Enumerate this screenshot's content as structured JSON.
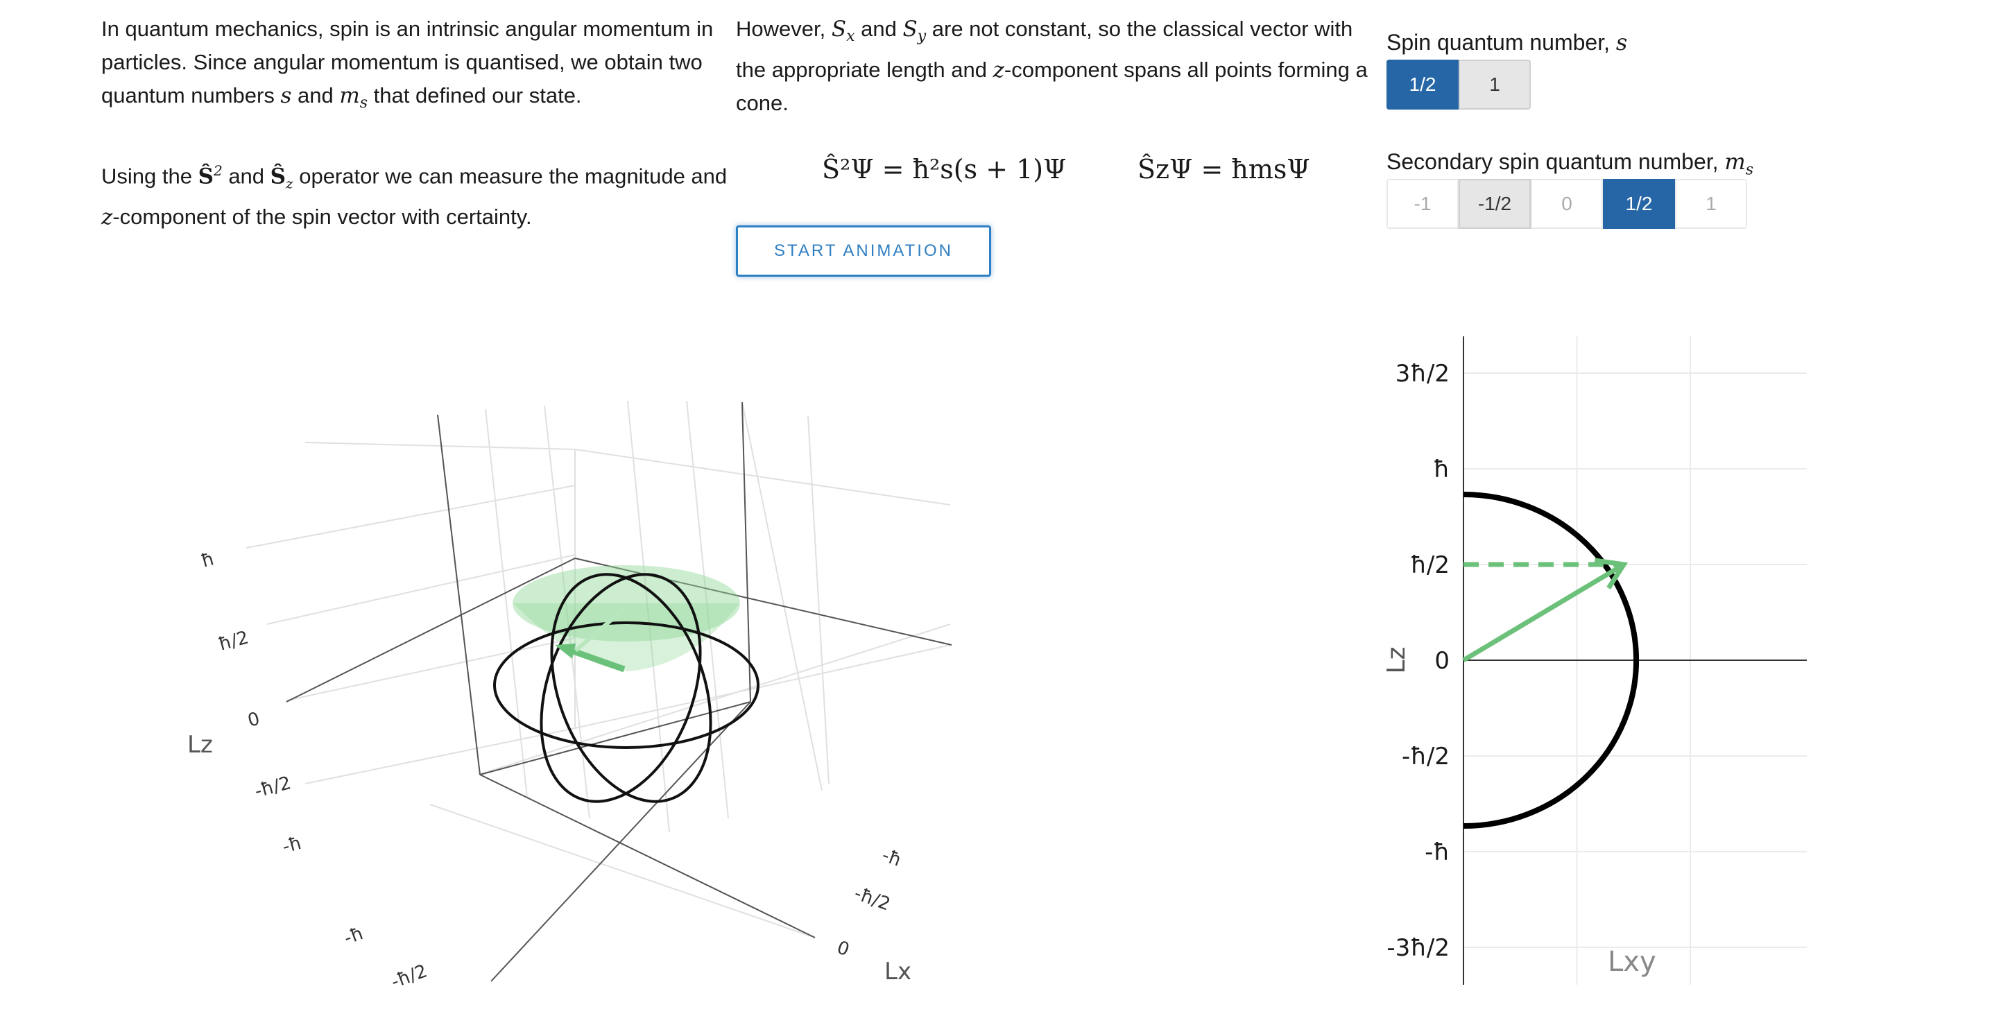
{
  "intro": {
    "p1": {
      "t1": "In quantum mechanics, spin is an intrinsic angular momentum in particles. Since angular momentum is quantised, we obtain two quantum numbers ",
      "s": "s",
      "t2": " and ",
      "ms": "m",
      "ms_sub": "s",
      "t3": " that defined our state."
    },
    "p2": {
      "t1": "However, ",
      "sx": "S",
      "sx_sub": "x",
      "t2": " and ",
      "sy": "S",
      "sy_sub": "y",
      "t3": " are not constant, so the classical vector with the appropriate length and ",
      "z": "z",
      "t4": "-component spans all points forming a cone."
    },
    "p3": {
      "t1": "Using the ",
      "op1": "Ŝ",
      "op1_sup": "2",
      "t2": " and ",
      "op2": "Ŝ",
      "op2_sub": "z",
      "t3": " operator we can measure the magnitude and ",
      "z": "z",
      "t4": "-component of the spin vector with certainty."
    }
  },
  "equations": {
    "eq1": "Ŝ²Ψ = ħ²s(s + 1)Ψ",
    "eq2": "ŜzΨ = ħmsΨ"
  },
  "start_button": "START ANIMATION",
  "controls": {
    "spin": {
      "label": "Spin quantum number, ",
      "var": "s",
      "options": [
        "1/2",
        "1"
      ],
      "selected": "1/2"
    },
    "secondary": {
      "label": "Secondary spin quantum number, ",
      "var": "m",
      "var_sub": "s",
      "options": [
        "-1",
        "-1/2",
        "0",
        "1/2",
        "1"
      ],
      "selected": "1/2"
    }
  },
  "plot3d": {
    "z_title": "Lz",
    "x_title": "Lx",
    "z_ticks": [
      "ħ",
      "ħ/2",
      "0",
      "-ħ/2",
      "-ħ"
    ],
    "x_ticks": [
      "-ħ",
      "-ħ/2",
      "0"
    ],
    "y_ticks": [
      "-ħ",
      "-ħ/2"
    ],
    "cone_color": "#8fd694",
    "vector_color": "#6cc17a"
  },
  "chart_data": {
    "type": "line",
    "xlabel": "Lxy",
    "ylabel": "Lz",
    "ylim": [
      -0.75,
      0.75
    ],
    "xlim": [
      0,
      1.4
    ],
    "y_ticks": [
      "3ħ/2",
      "ħ",
      "ħ/2",
      "0",
      "-ħ/2",
      "-ħ",
      "-3ħ/2"
    ],
    "y_tick_values": [
      1.5,
      1.0,
      0.5,
      0,
      -0.5,
      -1.0,
      -1.5
    ],
    "series": [
      {
        "type": "semicircle",
        "radius": 0.866,
        "color": "#000000"
      },
      {
        "type": "arrow",
        "from": [
          0,
          0
        ],
        "to": [
          0.707,
          0.5
        ],
        "color": "#6cc17a"
      },
      {
        "type": "dashed",
        "from": [
          0,
          0.5
        ],
        "to": [
          0.707,
          0.5
        ],
        "color": "#6cc17a"
      }
    ]
  }
}
